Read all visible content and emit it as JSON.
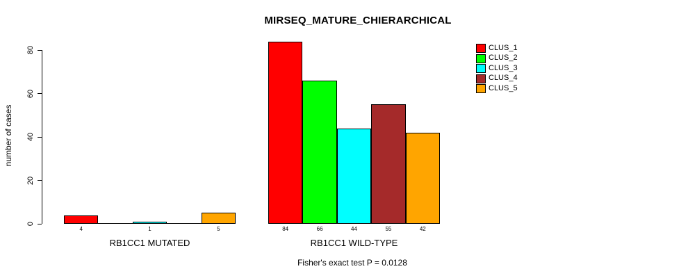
{
  "chart_data": {
    "type": "bar",
    "title": "MIRSEQ_MATURE_CHIERARCHICAL",
    "ylabel": "number of cases",
    "xlabel": "",
    "ylim": [
      0,
      84
    ],
    "yticks": [
      0,
      20,
      40,
      60,
      80
    ],
    "grid": false,
    "legend_position": "top-right",
    "series": [
      {
        "name": "CLUS_1",
        "color": "#ff0000"
      },
      {
        "name": "CLUS_2",
        "color": "#00ff00"
      },
      {
        "name": "CLUS_3",
        "color": "#00ffff"
      },
      {
        "name": "CLUS_4",
        "color": "#a52a2a"
      },
      {
        "name": "CLUS_5",
        "color": "#ffa500"
      }
    ],
    "groups": [
      {
        "label": "RB1CC1 MUTATED",
        "values": [
          4,
          0,
          1,
          0,
          5
        ]
      },
      {
        "label": "RB1CC1 WILD-TYPE",
        "values": [
          84,
          66,
          44,
          55,
          42
        ]
      }
    ],
    "visible_bar_value_labels": [
      "4",
      "1",
      "5",
      "84",
      "66",
      "44",
      "55",
      "42"
    ],
    "annotation": "Fisher's exact test P = 0.0128"
  }
}
